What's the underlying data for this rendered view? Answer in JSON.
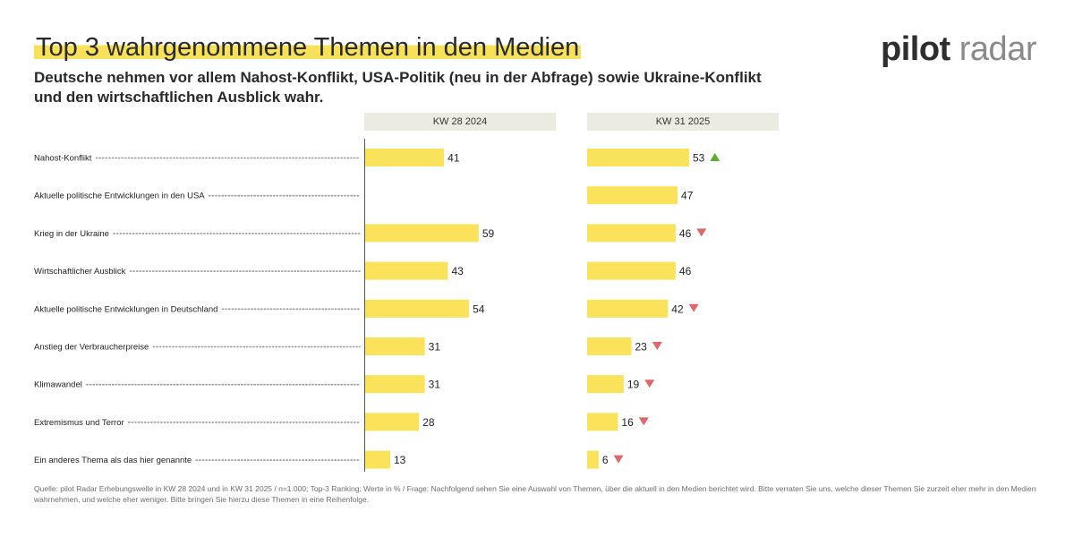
{
  "header": {
    "title": "Top 3 wahrgenommene Themen in den Medien",
    "subtitle": "Deutsche nehmen vor allem Nahost-Konflikt, USA-Politik (neu in der Abfrage) sowie Ukraine-Konflikt und den wirtschaftlichen Ausblick wahr."
  },
  "logo": {
    "word1": "pilot",
    "word2": "radar"
  },
  "footer": {
    "source": "Quelle: pilot Radar Erhebungswelle in KW 28 2024 und in KW 31 2025 / n=1.000; Top-3 Ranking; Werte in % / Frage: Nachfolgend sehen Sie eine Auswahl von Themen, über die aktuell in den Medien berichtet wird. Bitte verraten Sie uns, welche dieser Themen Sie zurzeit eher mehr in den Medien wahrnehmen, und welche eher weniger. Bitte bringen Sie hierzu diese Themen in eine Reihenfolge."
  },
  "colors": {
    "bar": "#fae35a",
    "axis": "#555555",
    "dots": "#9a9a9a",
    "up": "#5bb030",
    "down": "#e0666a"
  },
  "chart_data": {
    "type": "bar",
    "orientation": "horizontal",
    "categories": [
      "Nahost-Konflikt",
      "Aktuelle politische Entwicklungen in den USA",
      "Krieg in der Ukraine",
      "Wirtschaftlicher Ausblick",
      "Aktuelle politische Entwicklungen in Deutschland",
      "Anstieg der Verbraucherpreise",
      "Klimawandel",
      "Extremismus und Terror",
      "Ein anderes Thema als das hier genannte"
    ],
    "series": [
      {
        "name": "KW 28 2024",
        "values": [
          41,
          null,
          59,
          43,
          54,
          31,
          31,
          28,
          13
        ]
      },
      {
        "name": "KW 31 2025",
        "values": [
          53,
          47,
          46,
          46,
          42,
          23,
          19,
          16,
          6
        ],
        "trend": [
          "up",
          "",
          "down",
          "",
          "down",
          "down",
          "down",
          "down",
          "down"
        ]
      }
    ],
    "unit": "%"
  }
}
